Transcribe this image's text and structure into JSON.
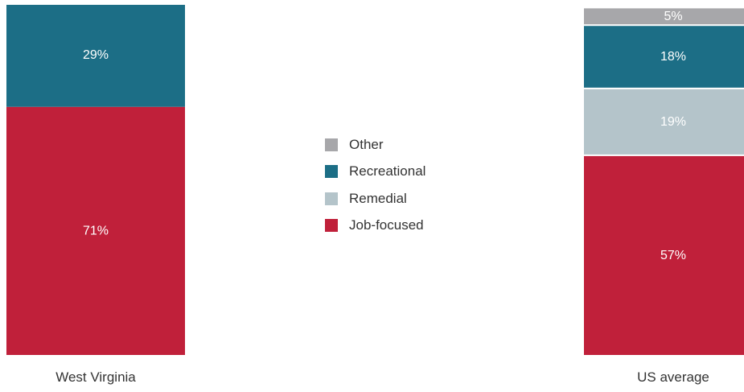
{
  "chart_data": {
    "type": "bar",
    "stacked": true,
    "stack_order_bottom_to_top": [
      "Job-focused",
      "Remedial",
      "Recreational",
      "Other"
    ],
    "categories": [
      "West Virginia",
      "US average"
    ],
    "series": [
      {
        "name": "Other",
        "color": "#a7a7aa",
        "values": [
          0,
          5
        ],
        "labels": [
          "",
          "5%"
        ]
      },
      {
        "name": "Recreational",
        "color": "#1c6e86",
        "values": [
          29,
          18
        ],
        "labels": [
          "29%",
          "18%"
        ]
      },
      {
        "name": "Remedial",
        "color": "#b4c4ca",
        "values": [
          0,
          19
        ],
        "labels": [
          "",
          "19%"
        ]
      },
      {
        "name": "Job-focused",
        "color": "#c0203a",
        "values": [
          71,
          57
        ],
        "labels": [
          "71%",
          "57%"
        ]
      }
    ],
    "unit": "%",
    "ylim": [
      0,
      100
    ],
    "legend_position": "center",
    "grid": false
  }
}
